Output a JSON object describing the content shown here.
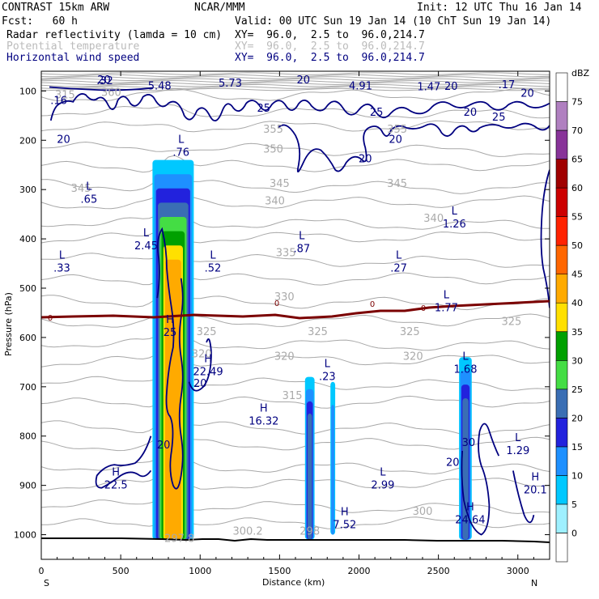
{
  "header": {
    "model": "CONTRAST 15km ARW",
    "org": "NCAR/MMM",
    "init": "Init: 12 UTC Thu 16 Jan 14",
    "fcst": "Fcst:   60 h",
    "valid": "Valid: 00 UTC Sun 19 Jan 14 (10 ChT Sun 19 Jan 14)",
    "field1": "Radar reflectivity (lamda = 10 cm)",
    "field1_xy": "XY=  96.0,  2.5 to  96.0,214.7",
    "field2": "Potential temperature",
    "field2_xy": "XY=  96.0,  2.5 to  96.0,214.7",
    "field3": "Horizontal wind speed",
    "field3_xy": "XY=  96.0,  2.5 to  96.0,214.7"
  },
  "colors": {
    "wind": "#000080",
    "theta": "#a8a8a8",
    "freezing": "#7b0000",
    "terrain": "#000000"
  },
  "chart_data": {
    "type": "cross-section",
    "xlabel": "Distance (km)",
    "ylabel": "Pressure (hPa)",
    "xlim": [
      0,
      3200
    ],
    "ylim": [
      1050,
      60
    ],
    "xticks": [
      "0",
      "500",
      "1000",
      "1500",
      "2000",
      "2500",
      "3000"
    ],
    "xtick_values": [
      0,
      500,
      1000,
      1500,
      2000,
      2500,
      3000
    ],
    "yticks": [
      "100",
      "200",
      "300",
      "400",
      "500",
      "600",
      "700",
      "800",
      "900",
      "1000"
    ],
    "ytick_values": [
      100,
      200,
      300,
      400,
      500,
      600,
      700,
      800,
      900,
      1000
    ],
    "left_end": "S",
    "right_end": "N",
    "colorbar": {
      "title": "dBZ",
      "levels": [
        "0",
        "5",
        "10",
        "15",
        "20",
        "25",
        "30",
        "35",
        "40",
        "45",
        "50",
        "55",
        "60",
        "65",
        "70",
        "75"
      ],
      "colors": [
        "#ffffff",
        "#9ef0ff",
        "#00c8ff",
        "#1e90ff",
        "#2222dd",
        "#3a6eb4",
        "#44dd44",
        "#00a000",
        "#ffe000",
        "#ffaa00",
        "#ff6600",
        "#ff2200",
        "#cc0000",
        "#a00000",
        "#883399",
        "#b080c0",
        "#ffffff"
      ]
    },
    "reflectivity_regions": [
      {
        "x": [
          700,
          960
        ],
        "p": [
          240,
          1010
        ],
        "peak_dbz": 40
      },
      {
        "x": [
          1660,
          1720
        ],
        "p": [
          680,
          1010
        ],
        "peak_dbz": 20
      },
      {
        "x": [
          1820,
          1850
        ],
        "p": [
          690,
          1000
        ],
        "peak_dbz": 10
      },
      {
        "x": [
          2630,
          2710
        ],
        "p": [
          640,
          1010
        ],
        "peak_dbz": 20
      }
    ],
    "freezing_level_label": "0",
    "theta_labels": [
      {
        "x": 150,
        "p": 115,
        "t": "315"
      },
      {
        "x": 440,
        "p": 110,
        "t": "360"
      },
      {
        "x": 1460,
        "p": 185,
        "t": "355"
      },
      {
        "x": 2240,
        "p": 185,
        "t": "355"
      },
      {
        "x": 1460,
        "p": 225,
        "t": "350"
      },
      {
        "x": 250,
        "p": 305,
        "t": "345"
      },
      {
        "x": 1500,
        "p": 295,
        "t": "345"
      },
      {
        "x": 2240,
        "p": 295,
        "t": "345"
      },
      {
        "x": 1470,
        "p": 330,
        "t": "340"
      },
      {
        "x": 2470,
        "p": 365,
        "t": "340"
      },
      {
        "x": 1540,
        "p": 435,
        "t": "335"
      },
      {
        "x": 1530,
        "p": 525,
        "t": "330"
      },
      {
        "x": 1040,
        "p": 595,
        "t": "325"
      },
      {
        "x": 1740,
        "p": 595,
        "t": "325"
      },
      {
        "x": 2320,
        "p": 595,
        "t": "325"
      },
      {
        "x": 2960,
        "p": 575,
        "t": "325"
      },
      {
        "x": 1530,
        "p": 645,
        "t": "320"
      },
      {
        "x": 2340,
        "p": 645,
        "t": "320"
      },
      {
        "x": 1010,
        "p": 640,
        "t": "320"
      },
      {
        "x": 1580,
        "p": 725,
        "t": "315"
      },
      {
        "x": 2400,
        "p": 960,
        "t": "300"
      },
      {
        "x": 870,
        "p": 1015,
        "t": "297.8"
      },
      {
        "x": 1300,
        "p": 1000,
        "t": "300.2"
      },
      {
        "x": 1690,
        "p": 1000,
        "t": "298"
      }
    ],
    "wind_labels": [
      {
        "x": 395,
        "p": 85,
        "t": "20"
      },
      {
        "x": 1650,
        "p": 85,
        "t": "20"
      },
      {
        "x": 2580,
        "p": 98,
        "t": "20"
      },
      {
        "x": 3060,
        "p": 112,
        "t": "20"
      },
      {
        "x": 140,
        "p": 205,
        "t": "20"
      },
      {
        "x": 2230,
        "p": 205,
        "t": "20"
      },
      {
        "x": 2040,
        "p": 245,
        "t": "20"
      },
      {
        "x": 1400,
        "p": 142,
        "t": "25"
      },
      {
        "x": 2110,
        "p": 150,
        "t": "25"
      },
      {
        "x": 2880,
        "p": 160,
        "t": "25"
      },
      {
        "x": 2700,
        "p": 150,
        "t": "20"
      },
      {
        "x": 1000,
        "p": 700,
        "t": "20"
      },
      {
        "x": 770,
        "p": 825,
        "t": "20"
      },
      {
        "x": 2590,
        "p": 860,
        "t": "20"
      },
      {
        "x": 2690,
        "p": 820,
        "t": "30"
      }
    ],
    "extrema": [
      {
        "x": 400,
        "p": 80,
        "type": "",
        "value": ".32"
      },
      {
        "x": 745,
        "p": 90,
        "type": "",
        "value": "5.48"
      },
      {
        "x": 1190,
        "p": 85,
        "type": "",
        "value": "5.73"
      },
      {
        "x": 2010,
        "p": 90,
        "type": "",
        "value": "4.91"
      },
      {
        "x": 2440,
        "p": 92,
        "type": "",
        "value": "1.47"
      },
      {
        "x": 2930,
        "p": 88,
        "type": "",
        "value": ".17"
      },
      {
        "x": 110,
        "p": 120,
        "type": "",
        "value": ".16"
      },
      {
        "x": 880,
        "p": 225,
        "type": "L",
        "value": ".76"
      },
      {
        "x": 300,
        "p": 320,
        "type": "L",
        "value": ".65"
      },
      {
        "x": 660,
        "p": 415,
        "type": "L",
        "value": "2.45"
      },
      {
        "x": 1640,
        "p": 420,
        "type": "L",
        "value": ".87"
      },
      {
        "x": 2600,
        "p": 370,
        "type": "L",
        "value": "1.26"
      },
      {
        "x": 130,
        "p": 460,
        "type": "L",
        "value": ".33"
      },
      {
        "x": 1080,
        "p": 460,
        "type": "L",
        "value": ".52"
      },
      {
        "x": 2250,
        "p": 460,
        "type": "L",
        "value": ".27"
      },
      {
        "x": 2550,
        "p": 540,
        "type": "L",
        "value": "1.77"
      },
      {
        "x": 810,
        "p": 590,
        "type": "H",
        "value": "25"
      },
      {
        "x": 1050,
        "p": 670,
        "type": "H",
        "value": "22.49"
      },
      {
        "x": 1800,
        "p": 680,
        "type": "L",
        "value": ".23"
      },
      {
        "x": 2670,
        "p": 665,
        "type": "L",
        "value": "1.68"
      },
      {
        "x": 1400,
        "p": 770,
        "type": "H",
        "value": "16.32"
      },
      {
        "x": 3000,
        "p": 830,
        "type": "L",
        "value": "1.29"
      },
      {
        "x": 470,
        "p": 900,
        "type": "H",
        "value": "22.5"
      },
      {
        "x": 2150,
        "p": 900,
        "type": "L",
        "value": "2.99"
      },
      {
        "x": 1910,
        "p": 980,
        "type": "H",
        "value": "7.52"
      },
      {
        "x": 2700,
        "p": 970,
        "type": "H",
        "value": "24.64"
      },
      {
        "x": 3110,
        "p": 910,
        "type": "H",
        "value": "20.1"
      }
    ]
  }
}
